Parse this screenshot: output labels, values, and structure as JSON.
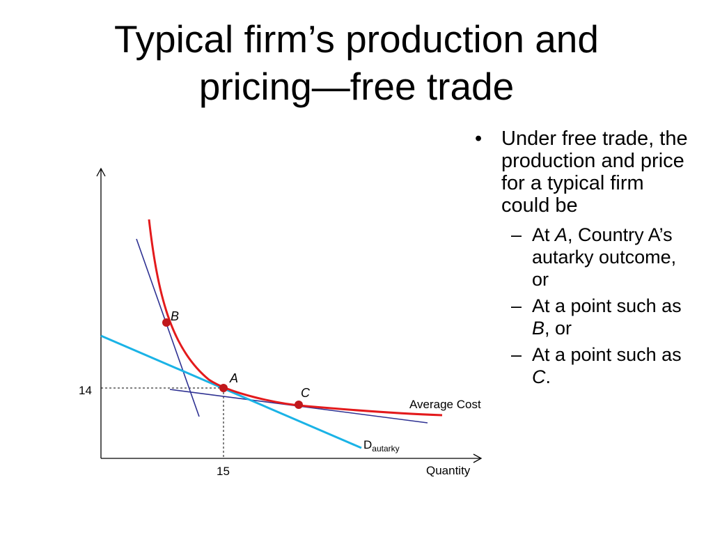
{
  "title_lines": [
    "Typical firm’s production and",
    "pricing—free trade"
  ],
  "bullets": {
    "main": "Under free trade, the production and price for a typical firm could be",
    "subs": [
      {
        "pre": "At ",
        "em": "A",
        "post": ", Country A’s autarky outcome, or"
      },
      {
        "pre": "At a point such as ",
        "em": "B",
        "post": ", or"
      },
      {
        "pre": "At a point such as ",
        "em": "C",
        "post": "."
      }
    ]
  },
  "chart_data": {
    "type": "line",
    "xlabel": "Quantity",
    "ylabel": "",
    "x_ticks": [
      "15"
    ],
    "y_ticks": [
      "14"
    ],
    "series": [
      {
        "name": "Average Cost",
        "color": "#e31a1c"
      },
      {
        "name": "D",
        "name_sub": "autarky",
        "color": "#1ab3e6"
      }
    ],
    "points": [
      {
        "label": "A",
        "x": 15,
        "y": 14
      },
      {
        "label": "B"
      },
      {
        "label": "C"
      }
    ],
    "colors": {
      "point": "#c0181c",
      "tangent": "#2e3192",
      "axis": "#000000",
      "guide": "#000000"
    }
  }
}
